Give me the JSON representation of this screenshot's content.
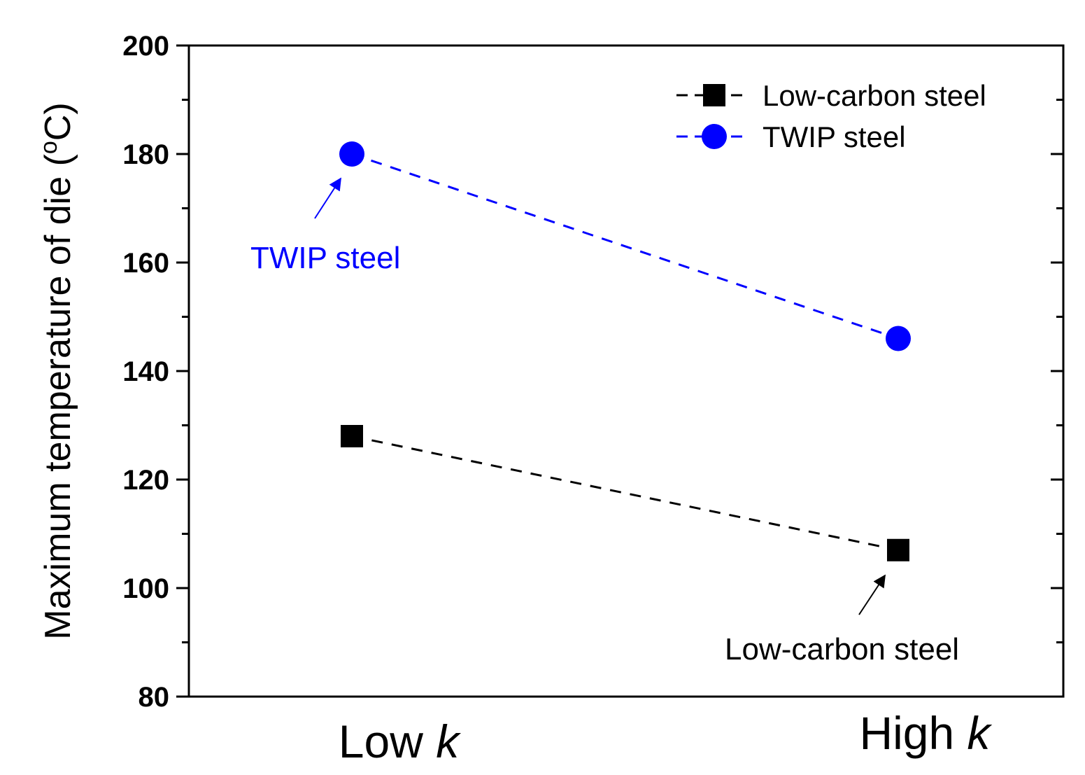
{
  "chart_data": {
    "type": "line",
    "ylabel": "Maximum temperature of die (°C)",
    "ylabel_prefix": "Maximum temperature of die (",
    "ylabel_degree": "o",
    "ylabel_suffix": "C)",
    "ylim": [
      80,
      200
    ],
    "yticks": [
      80,
      100,
      120,
      140,
      160,
      180,
      200
    ],
    "categories": [
      {
        "base": "Low ",
        "italic": "k"
      },
      {
        "base": "High ",
        "italic": "k"
      }
    ],
    "series": [
      {
        "name": "Low-carbon steel",
        "color": "#000000",
        "marker": "square",
        "values": [
          128,
          107
        ]
      },
      {
        "name": "TWIP steel",
        "color": "#0000ff",
        "marker": "circle",
        "values": [
          180,
          146
        ]
      }
    ],
    "legend_position": "top-right",
    "annotations": [
      {
        "text": "TWIP steel",
        "color": "#0000ff",
        "series": "TWIP steel",
        "category_index": 0
      },
      {
        "text": "Low-carbon steel",
        "color": "#000000",
        "series": "Low-carbon steel",
        "category_index": 1
      }
    ]
  }
}
